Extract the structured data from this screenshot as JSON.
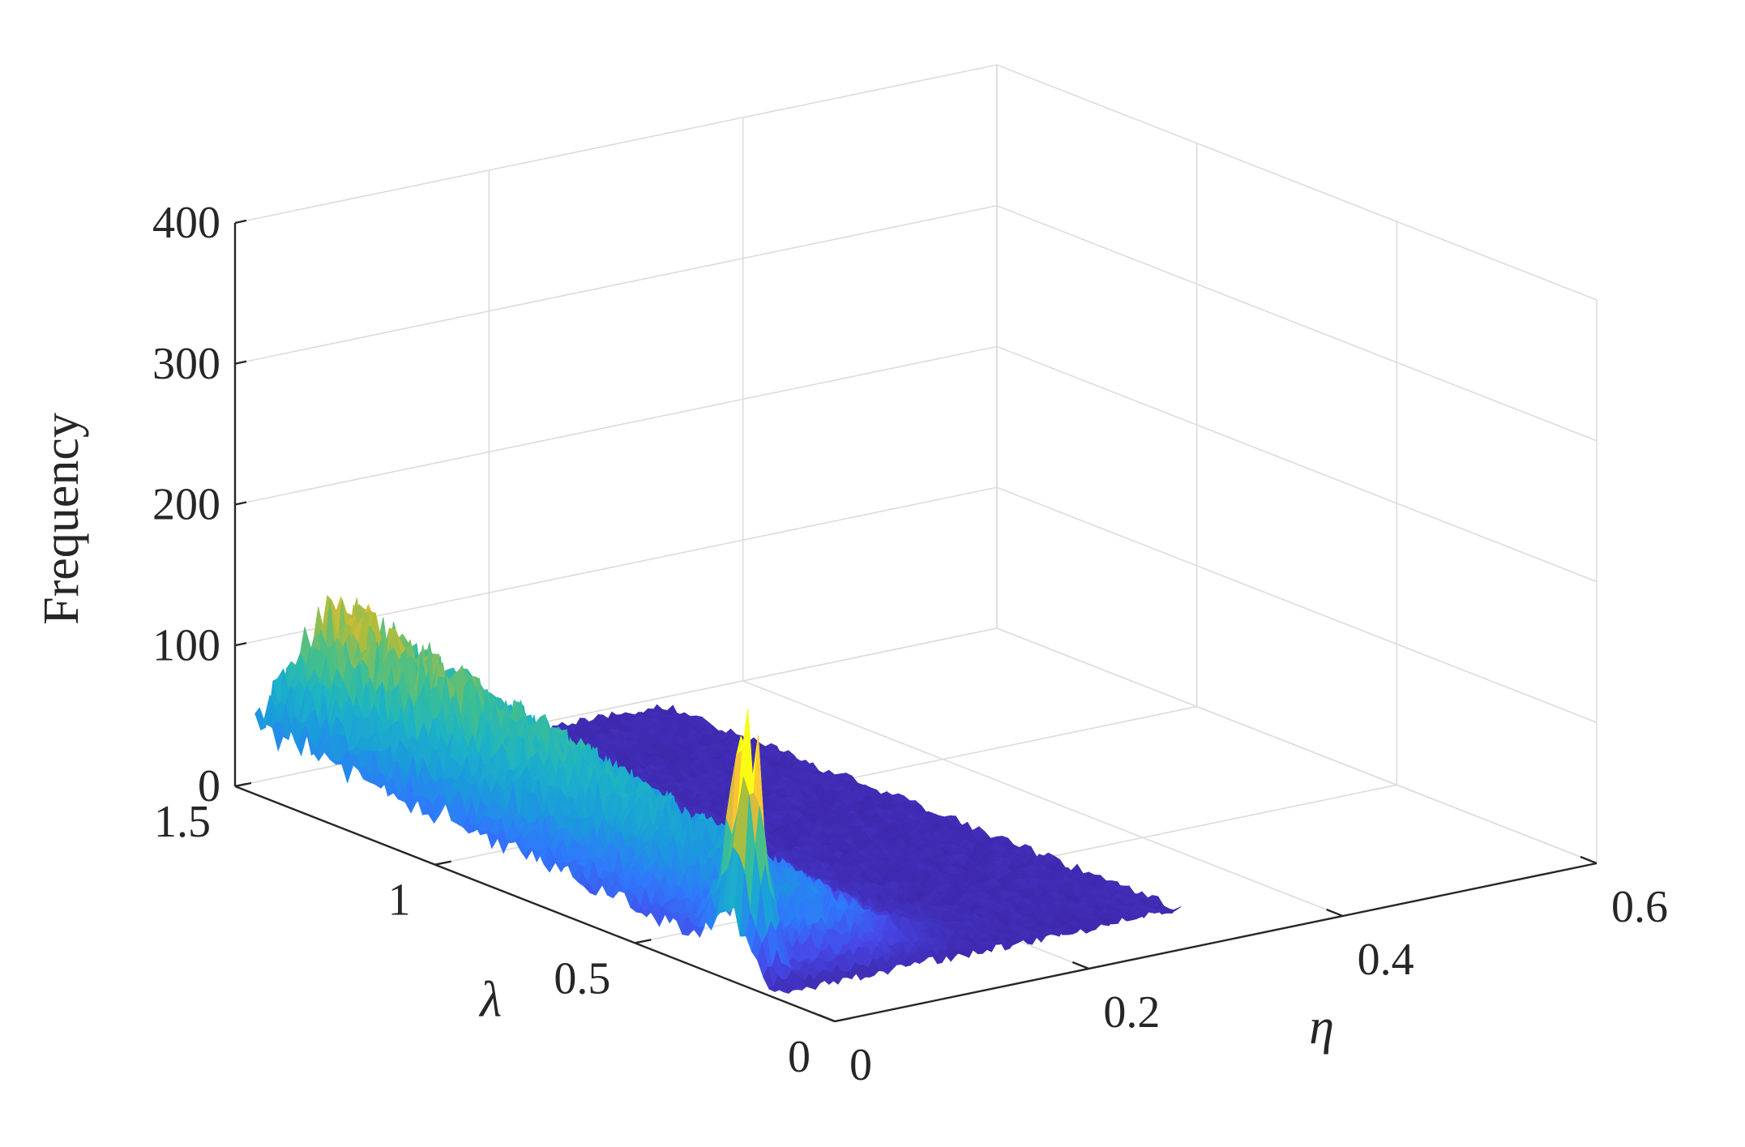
{
  "chart_data": {
    "type": "surface",
    "title": "",
    "xlabel": "η",
    "ylabel": "λ",
    "zlabel": "Frequency",
    "xlim": [
      0,
      0.6
    ],
    "ylim": [
      0,
      1.5
    ],
    "zlim": [
      0,
      400
    ],
    "x_ticks": [
      {
        "value": 0,
        "label": "0"
      },
      {
        "value": 0.2,
        "label": "0.2"
      },
      {
        "value": 0.4,
        "label": "0.4"
      },
      {
        "value": 0.6,
        "label": "0.6"
      }
    ],
    "y_ticks": [
      {
        "value": 0,
        "label": "0"
      },
      {
        "value": 0.5,
        "label": "0.5"
      },
      {
        "value": 1,
        "label": "1"
      },
      {
        "value": 1.5,
        "label": "1.5"
      }
    ],
    "z_ticks": [
      {
        "value": 0,
        "label": "0"
      },
      {
        "value": 100,
        "label": "100"
      },
      {
        "value": 200,
        "label": "200"
      },
      {
        "value": 300,
        "label": "300"
      },
      {
        "value": 400,
        "label": "400"
      }
    ],
    "grid": true,
    "colormap": "parula",
    "colormap_stops": [
      "#3e26a8",
      "#4748e8",
      "#2f79fb",
      "#1b9bdc",
      "#1cb3c6",
      "#3fbf90",
      "#b1bd3a",
      "#fbbb3d",
      "#f9fb15"
    ],
    "features": {
      "baseline": {
        "z": 3
      },
      "ridge": {
        "eta_center": 0.06,
        "eta_width": 0.065,
        "lambda_from": 0.25,
        "lambda_to": 1.45,
        "peak_z": 110
      },
      "spike": {
        "eta": 0.012,
        "lambda": 0.25,
        "peak_z": 150
      }
    }
  }
}
